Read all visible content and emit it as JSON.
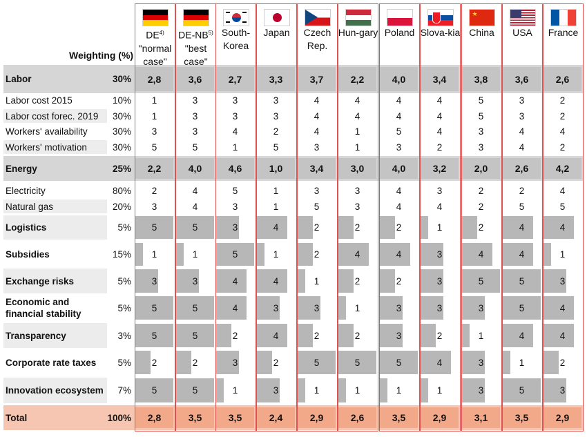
{
  "weighting_label": "Weighting (%)",
  "countries": [
    {
      "name": "DE",
      "sup": "4)",
      "sub": "\"normal case\"",
      "flag": "germany-flag"
    },
    {
      "name": "DE-NB",
      "sup": "5)",
      "sub": "\"best case\"",
      "flag": "germany-flag"
    },
    {
      "name": "South-Korea",
      "sup": "",
      "sub": "",
      "flag": "south-korea-flag"
    },
    {
      "name": "Japan",
      "sup": "",
      "sub": "",
      "flag": "japan-flag"
    },
    {
      "name": "Czech Rep.",
      "sup": "",
      "sub": "",
      "flag": "czech-flag"
    },
    {
      "name": "Hun-gary",
      "sup": "",
      "sub": "",
      "flag": "hungary-flag"
    },
    {
      "name": "Poland",
      "sup": "",
      "sub": "",
      "flag": "poland-flag"
    },
    {
      "name": "Slova-kia",
      "sup": "",
      "sub": "",
      "flag": "slovakia-flag"
    },
    {
      "name": "China",
      "sup": "",
      "sub": "",
      "flag": "china-flag"
    },
    {
      "name": "USA",
      "sup": "",
      "sub": "",
      "flag": "usa-flag"
    },
    {
      "name": "France",
      "sup": "",
      "sub": "",
      "flag": "france-flag"
    }
  ],
  "chart_data": {
    "type": "table",
    "columns": [
      "DE \"normal case\"",
      "DE-NB \"best case\"",
      "South-Korea",
      "Japan",
      "Czech Rep.",
      "Hungary",
      "Poland",
      "Slovakia",
      "China",
      "USA",
      "France"
    ],
    "rows": [
      {
        "label": "Labor",
        "weight": "30%",
        "kind": "main",
        "values": [
          "2,8",
          "3,6",
          "2,7",
          "3,3",
          "3,7",
          "2,2",
          "4,0",
          "3,4",
          "3,8",
          "3,6",
          "2,6"
        ]
      },
      {
        "label": "Labor cost 2015",
        "weight": "10%",
        "kind": "sub",
        "values": [
          "1",
          "3",
          "3",
          "3",
          "4",
          "4",
          "4",
          "4",
          "5",
          "3",
          "2"
        ]
      },
      {
        "label": "Labor cost forec. 2019",
        "weight": "30%",
        "kind": "sub",
        "values": [
          "1",
          "3",
          "3",
          "3",
          "4",
          "4",
          "4",
          "4",
          "5",
          "3",
          "2"
        ]
      },
      {
        "label": "Workers' availability",
        "weight": "30%",
        "kind": "sub",
        "values": [
          "3",
          "3",
          "4",
          "2",
          "4",
          "1",
          "5",
          "4",
          "3",
          "4",
          "4"
        ]
      },
      {
        "label": "Workers' motivation",
        "weight": "30%",
        "kind": "sub",
        "values": [
          "5",
          "5",
          "1",
          "5",
          "3",
          "1",
          "3",
          "2",
          "3",
          "4",
          "2"
        ]
      },
      {
        "label": "Energy",
        "weight": "25%",
        "kind": "main",
        "values": [
          "2,2",
          "4,0",
          "4,6",
          "1,0",
          "3,4",
          "3,0",
          "4,0",
          "3,2",
          "2,0",
          "2,6",
          "4,2"
        ]
      },
      {
        "label": "Electricity",
        "weight": "80%",
        "kind": "sub",
        "values": [
          "2",
          "4",
          "5",
          "1",
          "3",
          "3",
          "4",
          "3",
          "2",
          "2",
          "4"
        ]
      },
      {
        "label": "Natural gas",
        "weight": "20%",
        "kind": "sub",
        "values": [
          "3",
          "4",
          "3",
          "1",
          "5",
          "3",
          "4",
          "4",
          "2",
          "5",
          "5"
        ]
      },
      {
        "label": "Logistics",
        "weight": "5%",
        "kind": "score",
        "values": [
          "5",
          "5",
          "3",
          "4",
          "2",
          "2",
          "2",
          "1",
          "2",
          "4",
          "4"
        ]
      },
      {
        "label": "Subsidies",
        "weight": "15%",
        "kind": "score",
        "values": [
          "1",
          "1",
          "5",
          "1",
          "2",
          "4",
          "4",
          "3",
          "4",
          "4",
          "1"
        ]
      },
      {
        "label": "Exchange risks",
        "weight": "5%",
        "kind": "score",
        "values": [
          "3",
          "3",
          "4",
          "4",
          "1",
          "2",
          "2",
          "3",
          "5",
          "5",
          "3"
        ]
      },
      {
        "label": "Economic and financial stability",
        "weight": "5%",
        "kind": "score",
        "values": [
          "5",
          "5",
          "4",
          "3",
          "3",
          "1",
          "3",
          "3",
          "3",
          "5",
          "4"
        ]
      },
      {
        "label": "Transparency",
        "weight": "3%",
        "kind": "score",
        "values": [
          "5",
          "5",
          "2",
          "4",
          "2",
          "2",
          "3",
          "2",
          "1",
          "4",
          "4"
        ]
      },
      {
        "label": "Corporate rate taxes",
        "weight": "5%",
        "kind": "score",
        "values": [
          "2",
          "2",
          "3",
          "2",
          "5",
          "5",
          "5",
          "4",
          "3",
          "1",
          "2"
        ]
      },
      {
        "label": "Innovation ecosystem",
        "weight": "7%",
        "kind": "score",
        "values": [
          "5",
          "5",
          "1",
          "3",
          "1",
          "1",
          "1",
          "1",
          "3",
          "5",
          "3"
        ]
      },
      {
        "label": "Total",
        "weight": "100%",
        "kind": "total",
        "values": [
          "2,8",
          "3,5",
          "3,5",
          "2,4",
          "2,9",
          "2,6",
          "3,5",
          "2,9",
          "3,1",
          "3,5",
          "2,9"
        ]
      }
    ]
  },
  "colors": {
    "main_row": "#d6d6d6",
    "sub_row": "#ededed",
    "score_row": "#ececec",
    "bar": "#b7b7b7",
    "total_row": "#f6c6b3",
    "total_cell": "#f2a98a",
    "frame": "#e05252"
  }
}
